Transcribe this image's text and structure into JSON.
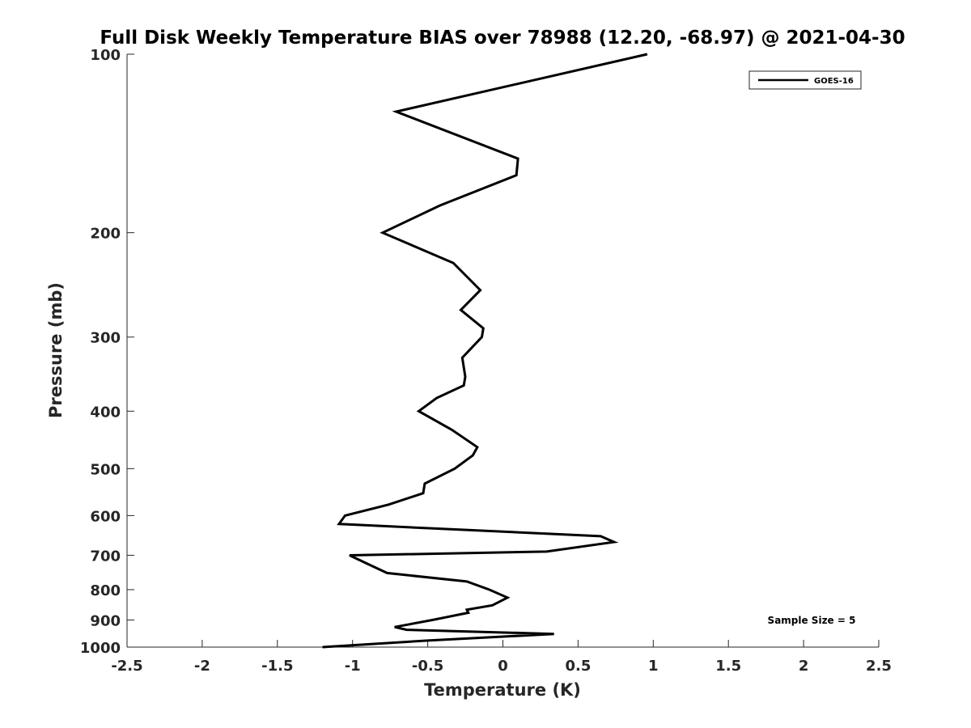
{
  "chart_data": {
    "type": "line",
    "title": "Full Disk Weekly Temperature BIAS over 78988 (12.20, -68.97) @ 2021-04-30",
    "xlabel": "Temperature (K)",
    "ylabel": "Pressure (mb)",
    "xlim": [
      -2.5,
      2.5
    ],
    "ylim": [
      100,
      1000
    ],
    "y_scale": "log",
    "y_reversed": true,
    "x_ticks": [
      -2.5,
      -2,
      -1.5,
      -1,
      -0.5,
      0,
      0.5,
      1,
      1.5,
      2,
      2.5
    ],
    "x_tick_labels": [
      "-2.5",
      "-2",
      "-1.5",
      "-1",
      "-0.5",
      "0",
      "0.5",
      "1",
      "1.5",
      "2",
      "2.5"
    ],
    "y_ticks": [
      100,
      200,
      300,
      400,
      500,
      600,
      700,
      800,
      900,
      1000
    ],
    "y_tick_labels": [
      "100",
      "200",
      "300",
      "400",
      "500",
      "600",
      "700",
      "800",
      "900",
      "1000"
    ],
    "grid": false,
    "legend_position": "top-right",
    "annotation": "Sample Size = 5",
    "series": [
      {
        "name": "GOES-16",
        "color": "#000000",
        "points": [
          [
            0.96,
            100
          ],
          [
            -0.71,
            125
          ],
          [
            0.1,
            150
          ],
          [
            0.09,
            160
          ],
          [
            -0.42,
            180
          ],
          [
            -0.8,
            200
          ],
          [
            -0.33,
            225
          ],
          [
            -0.15,
            250
          ],
          [
            -0.28,
            270
          ],
          [
            -0.13,
            290
          ],
          [
            -0.14,
            300
          ],
          [
            -0.27,
            325
          ],
          [
            -0.25,
            350
          ],
          [
            -0.26,
            362
          ],
          [
            -0.44,
            380
          ],
          [
            -0.56,
            400
          ],
          [
            -0.34,
            430
          ],
          [
            -0.17,
            460
          ],
          [
            -0.2,
            475
          ],
          [
            -0.32,
            500
          ],
          [
            -0.52,
            530
          ],
          [
            -0.53,
            550
          ],
          [
            -0.76,
            575
          ],
          [
            -1.05,
            600
          ],
          [
            -1.09,
            620
          ],
          [
            0.65,
            650
          ],
          [
            0.74,
            665
          ],
          [
            0.29,
            690
          ],
          [
            -1.02,
            700
          ],
          [
            -0.92,
            720
          ],
          [
            -0.77,
            750
          ],
          [
            -0.24,
            775
          ],
          [
            -0.09,
            800
          ],
          [
            0.03,
            825
          ],
          [
            -0.07,
            850
          ],
          [
            -0.24,
            865
          ],
          [
            -0.23,
            875
          ],
          [
            -0.47,
            900
          ],
          [
            -0.72,
            925
          ],
          [
            -0.64,
            935
          ],
          [
            0.34,
            950
          ],
          [
            -0.5,
            975
          ],
          [
            -1.2,
            1000
          ]
        ]
      }
    ]
  }
}
